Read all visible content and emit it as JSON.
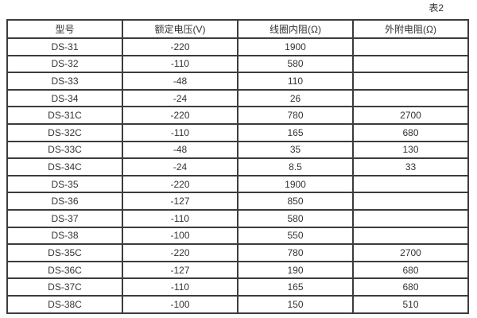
{
  "caption": "表2",
  "table": {
    "headers": [
      "型号",
      "额定电压(V)",
      "线圈内阻(Ω)",
      "外附电阻(Ω)"
    ],
    "rows": [
      [
        "DS-31",
        "-220",
        "1900",
        ""
      ],
      [
        "DS-32",
        "-110",
        "580",
        ""
      ],
      [
        "DS-33",
        "-48",
        "110",
        ""
      ],
      [
        "DS-34",
        "-24",
        "26",
        ""
      ],
      [
        "DS-31C",
        "-220",
        "780",
        "2700"
      ],
      [
        "DS-32C",
        "-110",
        "165",
        "680"
      ],
      [
        "DS-33C",
        "-48",
        "35",
        "130"
      ],
      [
        "DS-34C",
        "-24",
        "8.5",
        "33"
      ],
      [
        "DS-35",
        "-220",
        "1900",
        ""
      ],
      [
        "DS-36",
        "-127",
        "850",
        ""
      ],
      [
        "DS-37",
        "-110",
        "580",
        ""
      ],
      [
        "DS-38",
        "-100",
        "550",
        ""
      ],
      [
        "DS-35C",
        "-220",
        "780",
        "2700"
      ],
      [
        "DS-36C",
        "-127",
        "190",
        "680"
      ],
      [
        "DS-37C",
        "-110",
        "165",
        "680"
      ],
      [
        "DS-38C",
        "-100",
        "150",
        "510"
      ]
    ]
  },
  "colors": {
    "border": "#3c3c3c",
    "text": "#333333",
    "background": "#ffffff"
  }
}
